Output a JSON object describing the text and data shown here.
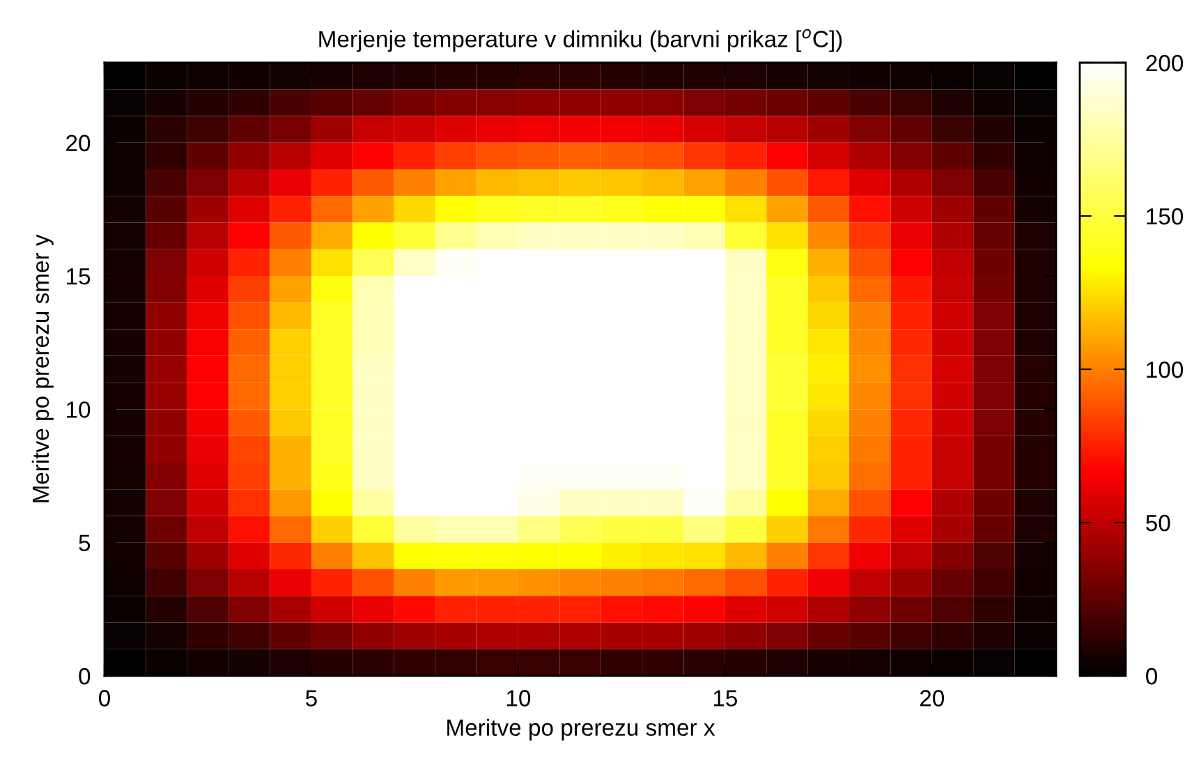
{
  "chart_data": {
    "type": "heatmap",
    "title": "Merjenje temperature v dimniku (barvni prikaz [$^{o}$C])",
    "xlabel": "Meritve po prerezu smer x",
    "ylabel": "Meritve po prerezu smer y",
    "x": [
      0.5,
      1.5,
      2.5,
      3.5,
      4.5,
      5.5,
      6.5,
      7.5,
      8.5,
      9.5,
      10.5,
      11.5,
      12.5,
      13.5,
      14.5,
      15.5,
      16.5,
      17.5,
      18.5,
      19.5,
      20.5,
      21.5,
      22.5
    ],
    "y": [
      22.5,
      21.5,
      20.5,
      19.5,
      18.5,
      17.5,
      16.5,
      15.5,
      14.5,
      13.5,
      12.5,
      11.5,
      10.5,
      9.5,
      8.5,
      7.5,
      6.5,
      5.5,
      4.5,
      3.5,
      2.5,
      1.5,
      0.5
    ],
    "xlim": [
      0,
      23
    ],
    "xticks": [
      0,
      5,
      10,
      15,
      20
    ],
    "ylim": [
      0,
      23
    ],
    "yticks": [
      0,
      5,
      10,
      15,
      20
    ],
    "clim": [
      0,
      200
    ],
    "cticks": [
      0,
      50,
      100,
      150,
      200
    ],
    "cells": [
      [
        0,
        3,
        4,
        5,
        6,
        7,
        8,
        9,
        10,
        10,
        11,
        11,
        10,
        9,
        9,
        8,
        7,
        6,
        5,
        4,
        3,
        2,
        0
      ],
      [
        2,
        7,
        10,
        13,
        19,
        23,
        27,
        31,
        35,
        36,
        38,
        38,
        38,
        36,
        33,
        31,
        29,
        25,
        20,
        15,
        8,
        4,
        2
      ],
      [
        3,
        11,
        17,
        25,
        32,
        42,
        52,
        54,
        59,
        61,
        63,
        64,
        63,
        61,
        56,
        52,
        48,
        42,
        33,
        25,
        15,
        8,
        3
      ],
      [
        4,
        13,
        25,
        38,
        48,
        59,
        67,
        75,
        83,
        88,
        90,
        92,
        90,
        88,
        81,
        75,
        67,
        56,
        46,
        35,
        25,
        13,
        4
      ],
      [
        4,
        19,
        33,
        48,
        61,
        75,
        90,
        100,
        109,
        115,
        117,
        119,
        118,
        115,
        109,
        100,
        88,
        73,
        59,
        46,
        33,
        19,
        5
      ],
      [
        6,
        23,
        42,
        59,
        75,
        94,
        109,
        123,
        133,
        140,
        143,
        143,
        140,
        135,
        135,
        125,
        109,
        90,
        71,
        54,
        42,
        25,
        6
      ],
      [
        6,
        27,
        48,
        67,
        90,
        111,
        133,
        147,
        170,
        180,
        184,
        184,
        184,
        184,
        180,
        147,
        125,
        102,
        81,
        61,
        46,
        27,
        8
      ],
      [
        6,
        33,
        54,
        75,
        100,
        125,
        155,
        185,
        197,
        200,
        200,
        200,
        200,
        200,
        200,
        184,
        137,
        113,
        88,
        67,
        50,
        29,
        8
      ],
      [
        7,
        35,
        59,
        83,
        109,
        137,
        180,
        200,
        200,
        200,
        200,
        200,
        200,
        200,
        200,
        185,
        143,
        119,
        94,
        73,
        52,
        31,
        8
      ],
      [
        7,
        38,
        63,
        88,
        115,
        143,
        181,
        200,
        200,
        200,
        200,
        200,
        200,
        200,
        200,
        185,
        143,
        123,
        100,
        75,
        54,
        33,
        8
      ],
      [
        7,
        38,
        65,
        92,
        121,
        143,
        181,
        200,
        200,
        200,
        200,
        200,
        200,
        200,
        200,
        185,
        143,
        127,
        102,
        77,
        54,
        33,
        8
      ],
      [
        7,
        40,
        67,
        94,
        121,
        143,
        184,
        200,
        200,
        200,
        200,
        200,
        200,
        200,
        200,
        185,
        147,
        129,
        104,
        79,
        56,
        33,
        10
      ],
      [
        7,
        40,
        67,
        94,
        121,
        143,
        184,
        200,
        200,
        200,
        200,
        200,
        200,
        200,
        200,
        185,
        147,
        127,
        102,
        79,
        54,
        33,
        10
      ],
      [
        7,
        38,
        64,
        90,
        119,
        143,
        184,
        200,
        200,
        200,
        200,
        200,
        200,
        200,
        200,
        184,
        143,
        123,
        100,
        77,
        54,
        33,
        10
      ],
      [
        7,
        38,
        61,
        85,
        113,
        143,
        184,
        200,
        200,
        200,
        200,
        200,
        200,
        200,
        200,
        185,
        143,
        121,
        98,
        75,
        52,
        31,
        10
      ],
      [
        6,
        35,
        59,
        83,
        113,
        140,
        184,
        200,
        200,
        200,
        197,
        197,
        197,
        197,
        200,
        185,
        143,
        119,
        96,
        75,
        52,
        31,
        10
      ],
      [
        6,
        33,
        54,
        79,
        107,
        133,
        175,
        200,
        200,
        200,
        193,
        184,
        184,
        184,
        197,
        175,
        133,
        111,
        88,
        67,
        46,
        29,
        8
      ],
      [
        6,
        29,
        50,
        71,
        94,
        121,
        147,
        175,
        180,
        180,
        167,
        155,
        150,
        150,
        167,
        150,
        121,
        98,
        77,
        59,
        44,
        27,
        8
      ],
      [
        5,
        23,
        42,
        59,
        77,
        100,
        117,
        133,
        135,
        135,
        133,
        133,
        129,
        127,
        125,
        115,
        100,
        81,
        63,
        50,
        35,
        21,
        6
      ],
      [
        4,
        17,
        33,
        48,
        61,
        75,
        88,
        100,
        107,
        107,
        104,
        102,
        100,
        98,
        94,
        88,
        75,
        63,
        50,
        40,
        27,
        17,
        5
      ],
      [
        3,
        10,
        21,
        33,
        44,
        54,
        61,
        69,
        75,
        75,
        75,
        75,
        71,
        69,
        67,
        59,
        54,
        46,
        38,
        29,
        21,
        13,
        4
      ],
      [
        2,
        6,
        13,
        17,
        25,
        31,
        38,
        42,
        44,
        46,
        46,
        46,
        44,
        44,
        42,
        38,
        33,
        27,
        23,
        17,
        13,
        8,
        3
      ],
      [
        0,
        3,
        5,
        6,
        8,
        10,
        11,
        13,
        14,
        15,
        15,
        15,
        13,
        13,
        11,
        10,
        8,
        7,
        6,
        4,
        3,
        2,
        0
      ]
    ]
  }
}
